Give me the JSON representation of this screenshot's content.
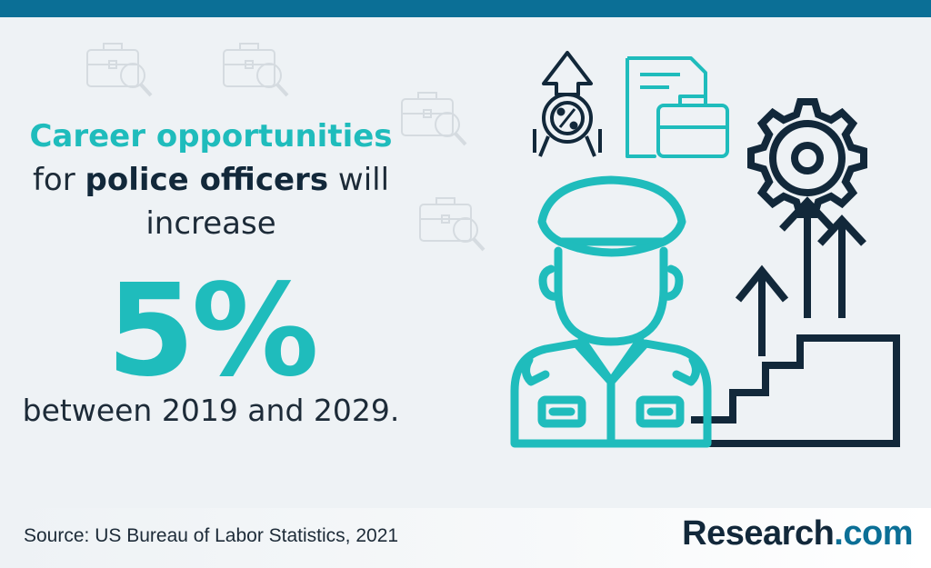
{
  "headline": {
    "line1_teal": "Career opportunities",
    "line2_pre": "for ",
    "line2_bold": "police officers",
    "line2_post": " will",
    "line3": "increase"
  },
  "stat": {
    "value": "5%"
  },
  "period": "between 2019 and 2029.",
  "footer": {
    "source": "Source: US Bureau of Labor Statistics, 2021",
    "brand_main": "Research",
    "brand_suffix": ".com"
  },
  "colors": {
    "accent": "#1fbcbc",
    "dark": "#12283a",
    "brand_blue": "#0b6f96"
  },
  "icons": [
    "briefcase-search-icon",
    "percent-badge-up-icon",
    "document-briefcase-icon",
    "police-officer-icon",
    "gear-target-icon",
    "stairs-arrows-icon"
  ]
}
